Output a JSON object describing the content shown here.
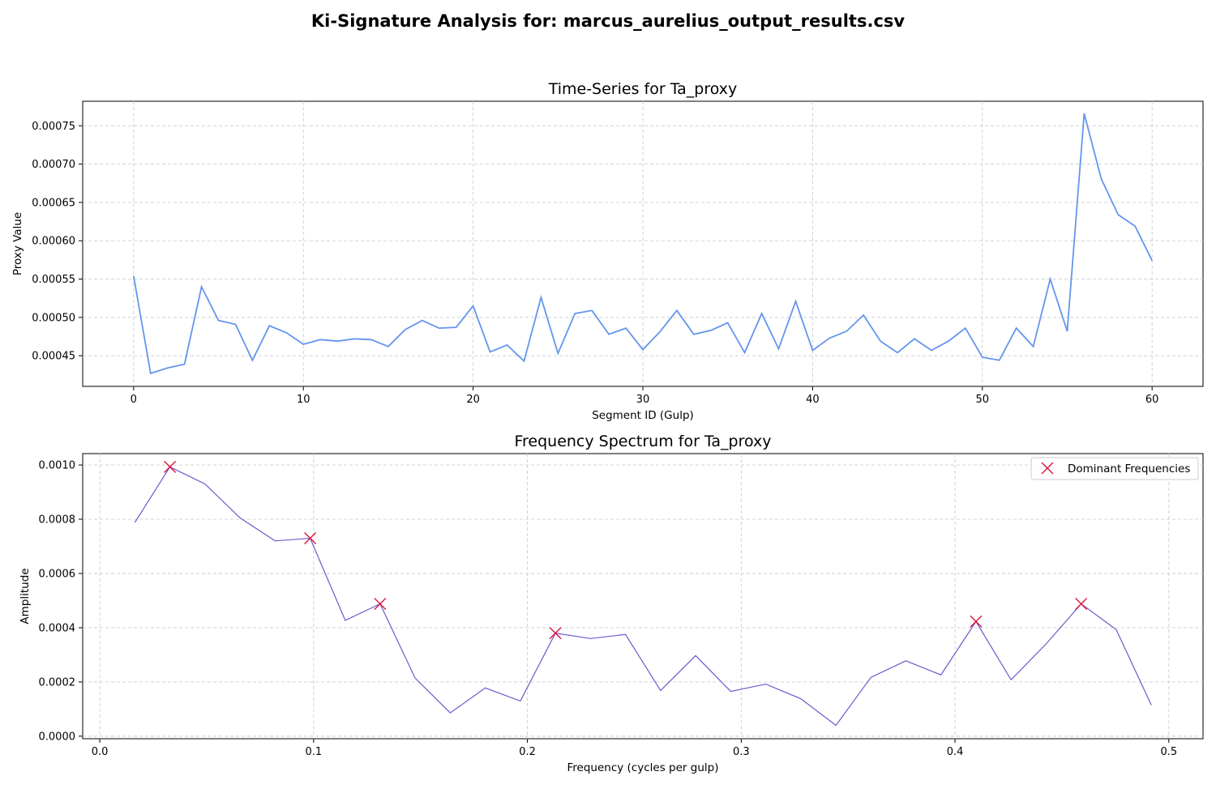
{
  "figure": {
    "suptitle": "Ki-Signature Analysis for: marcus_aurelius_output_results.csv"
  },
  "chart_data": [
    {
      "type": "line",
      "title": "Time-Series for Ta_proxy",
      "xlabel": "Segment ID (Gulp)",
      "ylabel": "Proxy Value",
      "xlim": [
        -3,
        63
      ],
      "ylim": [
        0.00041,
        0.000782
      ],
      "xticks": [
        0,
        10,
        20,
        30,
        40,
        50,
        60
      ],
      "xtick_labels": [
        "0",
        "10",
        "20",
        "30",
        "40",
        "50",
        "60"
      ],
      "yticks": [
        0.00045,
        0.0005,
        0.00055,
        0.0006,
        0.00065,
        0.0007,
        0.00075
      ],
      "ytick_labels": [
        "0.00045",
        "0.00050",
        "0.00055",
        "0.00060",
        "0.00065",
        "0.00070",
        "0.00075"
      ],
      "grid": true,
      "color": "#6495ed",
      "series": [
        {
          "x": [
            0,
            1,
            2,
            3,
            4,
            5,
            6,
            7,
            8,
            9,
            10,
            11,
            12,
            13,
            14,
            15,
            16,
            17,
            18,
            19,
            20,
            21,
            22,
            23,
            24,
            25,
            26,
            27,
            28,
            29,
            30,
            31,
            32,
            33,
            34,
            35,
            36,
            37,
            38,
            39,
            40,
            41,
            42,
            43,
            44,
            45,
            46,
            47,
            48,
            49,
            50,
            51,
            52,
            53,
            54,
            55,
            56,
            57,
            58,
            59,
            60
          ],
          "values": [
            0.000554,
            0.000427,
            0.000434,
            0.000439,
            0.00054,
            0.000496,
            0.000491,
            0.000444,
            0.000489,
            0.00048,
            0.000465,
            0.000471,
            0.000469,
            0.000472,
            0.000471,
            0.000462,
            0.000484,
            0.000496,
            0.000486,
            0.000487,
            0.000515,
            0.000455,
            0.000464,
            0.000443,
            0.000526,
            0.000453,
            0.000505,
            0.000509,
            0.000478,
            0.000486,
            0.000458,
            0.000481,
            0.000509,
            0.000478,
            0.000483,
            0.000493,
            0.000454,
            0.000505,
            0.000459,
            0.000521,
            0.000457,
            0.000473,
            0.000482,
            0.000503,
            0.000469,
            0.000454,
            0.000472,
            0.000457,
            0.000469,
            0.000486,
            0.000448,
            0.000444,
            0.000486,
            0.000462,
            0.00055,
            0.000482,
            0.000766,
            0.000681,
            0.000634,
            0.000619,
            0.000574
          ]
        }
      ]
    },
    {
      "type": "line",
      "title": "Frequency Spectrum for Ta_proxy",
      "xlabel": "Frequency (cycles per gulp)",
      "ylabel": "Amplitude",
      "xlim": [
        -0.008,
        0.516
      ],
      "ylim": [
        -9.3e-06,
        0.001042
      ],
      "xticks": [
        0.0,
        0.1,
        0.2,
        0.3,
        0.4,
        0.5
      ],
      "xtick_labels": [
        "0.0",
        "0.1",
        "0.2",
        "0.3",
        "0.4",
        "0.5"
      ],
      "yticks": [
        0.0,
        0.0002,
        0.0004,
        0.0006,
        0.0008,
        0.001
      ],
      "ytick_labels": [
        "0.0000",
        "0.0002",
        "0.0004",
        "0.0006",
        "0.0008",
        "0.0010"
      ],
      "grid": true,
      "legend_position": "top-right",
      "line_color": "#6a5acd",
      "marker_color": "#dc143c",
      "series": [
        {
          "x": [
            0.0164,
            0.0328,
            0.0492,
            0.0656,
            0.082,
            0.0984,
            0.1148,
            0.1311,
            0.1475,
            0.1639,
            0.1803,
            0.1967,
            0.2131,
            0.2295,
            0.2459,
            0.2623,
            0.2787,
            0.2951,
            0.3115,
            0.3279,
            0.3443,
            0.3607,
            0.377,
            0.3934,
            0.4098,
            0.4262,
            0.4426,
            0.459,
            0.4754,
            0.4918
          ],
          "values": [
            0.000788,
            0.000993,
            0.00093,
            0.000805,
            0.00072,
            0.00073,
            0.000427,
            0.000488,
            0.000214,
            8.6e-05,
            0.000178,
            0.00013,
            0.00038,
            0.00036,
            0.000375,
            0.000168,
            0.000297,
            0.000165,
            0.000192,
            0.000138,
            4e-05,
            0.000217,
            0.000278,
            0.000226,
            0.000423,
            0.000208,
            0.00034,
            0.000488,
            0.000393,
            0.000115
          ]
        },
        {
          "name": "Dominant Frequencies",
          "x": [
            0.0328,
            0.0984,
            0.1311,
            0.2131,
            0.4098,
            0.459
          ],
          "values": [
            0.000993,
            0.00073,
            0.000488,
            0.00038,
            0.000423,
            0.000488
          ]
        }
      ]
    }
  ]
}
